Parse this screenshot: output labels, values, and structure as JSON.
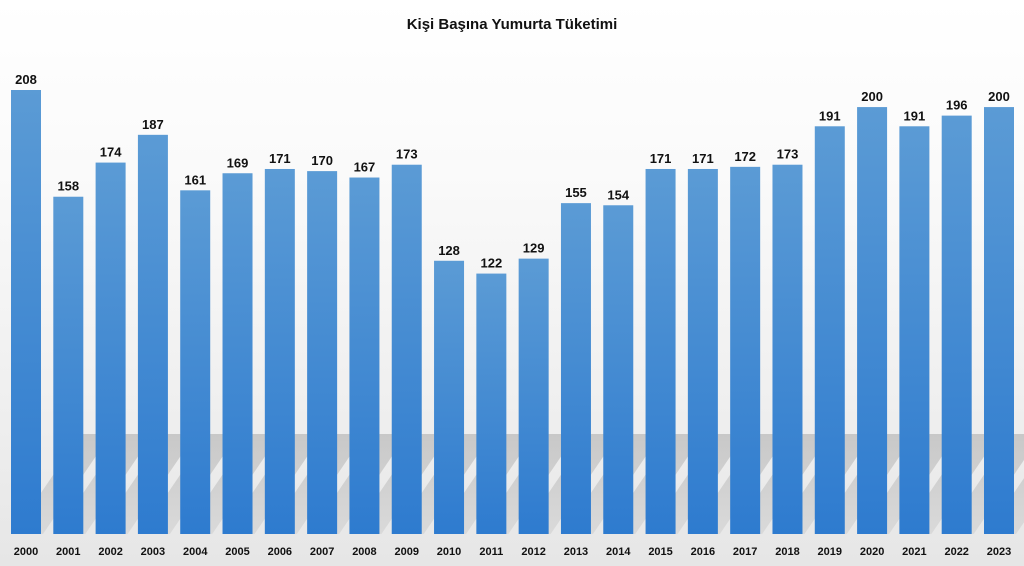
{
  "chart_data": {
    "type": "bar",
    "title": "Kişi Başına Yumurta Tüketimi",
    "xlabel": "",
    "ylabel": "",
    "categories": [
      "2000",
      "2001",
      "2002",
      "2003",
      "2004",
      "2005",
      "2006",
      "2007",
      "2008",
      "2009",
      "2010",
      "2011",
      "2012",
      "2013",
      "2014",
      "2015",
      "2016",
      "2017",
      "2018",
      "2019",
      "2020",
      "2021",
      "2022",
      "2023"
    ],
    "values": [
      208,
      158,
      174,
      187,
      161,
      169,
      171,
      170,
      167,
      173,
      128,
      122,
      129,
      155,
      154,
      171,
      171,
      172,
      173,
      191,
      200,
      191,
      196,
      200
    ],
    "ylim": [
      0,
      208
    ],
    "grid": false,
    "legend": "none",
    "data_labels": true
  },
  "colors": {
    "bar_top": "#5b9bd5",
    "bar_bottom": "#2e7bcf",
    "shadow": "#bdbdbd",
    "text": "#111111"
  }
}
